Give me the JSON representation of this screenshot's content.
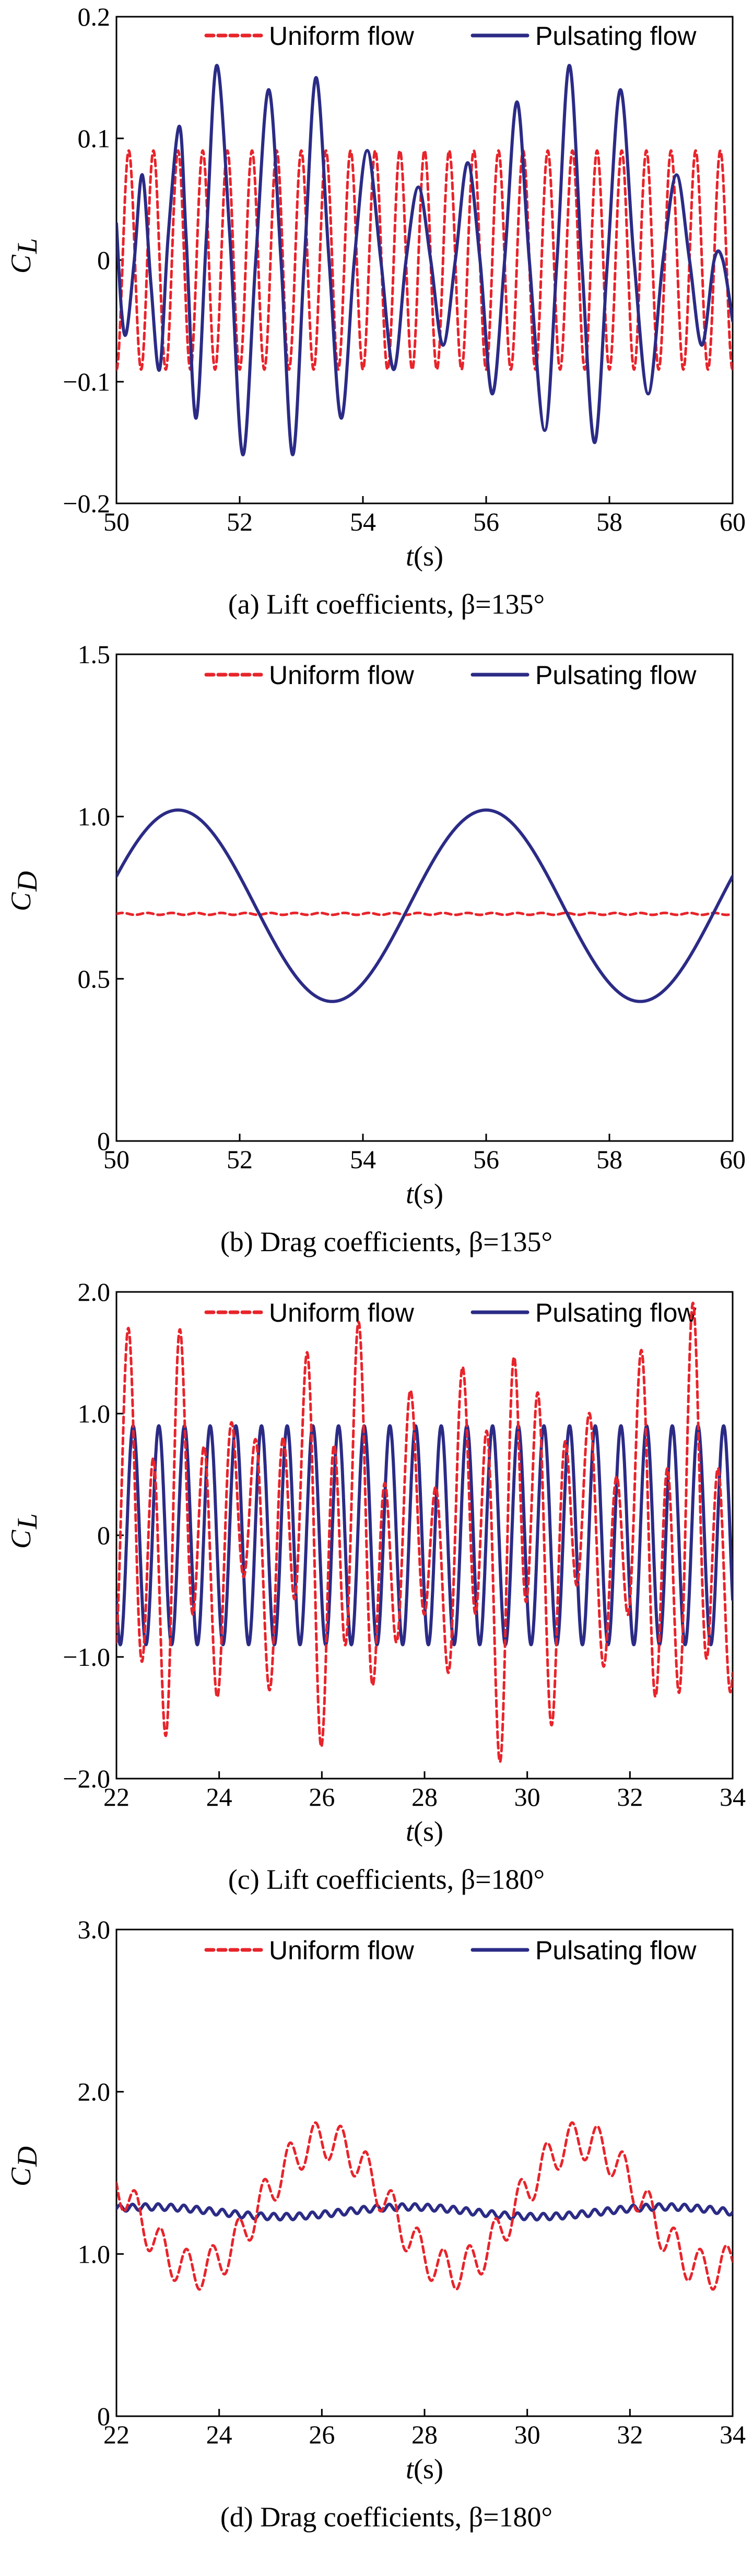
{
  "colors": {
    "uniform": "#e8242b",
    "pulsating": "#2b2b86",
    "axis": "#000000"
  },
  "chart_data": [
    {
      "type": "line",
      "panel": "a",
      "caption": "(a) Lift coefficients,  β=135°",
      "xlabel_italic": "t",
      "xlabel_unit": " (s)",
      "ylabel_main": "C",
      "ylabel_sub": "L",
      "xlim": [
        50,
        60
      ],
      "ylim": [
        -0.2,
        0.2
      ],
      "xticks": [
        50,
        52,
        54,
        56,
        58,
        60
      ],
      "yticks": [
        -0.2,
        -0.1,
        0,
        0.1,
        0.2
      ],
      "xtick_labels": [
        "50",
        "52",
        "54",
        "56",
        "58",
        "60"
      ],
      "ytick_labels": [
        "−0.2",
        "−0.1",
        "0",
        "0.1",
        "0.2"
      ],
      "legend": [
        "Uniform flow",
        "Pulsating flow"
      ],
      "series": [
        {
          "name": "Uniform flow",
          "style": "dashed",
          "model": "sine",
          "t0": 50,
          "t1": 60,
          "amplitude": 0.09,
          "offset": 0,
          "period": 0.4,
          "phase_t": 50.1
        },
        {
          "name": "Pulsating flow",
          "style": "solid",
          "model": "points",
          "x": [
            50,
            50.08,
            50.16,
            50.29,
            50.42,
            50.56,
            50.7,
            50.84,
            51.02,
            51.13,
            51.29,
            51.46,
            51.63,
            51.84,
            52.05,
            52.26,
            52.47,
            52.67,
            52.86,
            53.05,
            53.24,
            53.45,
            53.65,
            53.86,
            54.07,
            54.29,
            54.5,
            54.7,
            54.9,
            55.1,
            55.3,
            55.5,
            55.7,
            55.9,
            56.1,
            56.3,
            56.5,
            56.7,
            56.95,
            57.15,
            57.35,
            57.55,
            57.76,
            57.97,
            58.18,
            58.4,
            58.63,
            58.87,
            59.09,
            59.3,
            59.5,
            59.7,
            59.84,
            60
          ],
          "y": [
            0.03,
            -0.04,
            -0.06,
            0.0,
            0.07,
            -0.02,
            -0.09,
            0.02,
            0.11,
            0.02,
            -0.13,
            0.02,
            0.16,
            0.02,
            -0.16,
            0.0,
            0.14,
            0.0,
            -0.16,
            0.0,
            0.15,
            0.0,
            -0.13,
            0.0,
            0.09,
            0.0,
            -0.09,
            0.0,
            0.06,
            0.0,
            -0.07,
            0.0,
            0.08,
            0.0,
            -0.11,
            0.0,
            0.13,
            0.0,
            -0.14,
            0.0,
            0.16,
            0.0,
            -0.15,
            0.0,
            0.14,
            0.0,
            -0.11,
            0.0,
            0.07,
            0.0,
            -0.07,
            0.0,
            0.0,
            -0.05
          ]
        }
      ]
    },
    {
      "type": "line",
      "panel": "b",
      "caption": "(b) Drag coefficients,  β=135°",
      "xlabel_italic": "t",
      "xlabel_unit": " (s)",
      "ylabel_main": "C",
      "ylabel_sub": "D",
      "xlim": [
        50,
        60
      ],
      "ylim": [
        0,
        1.5
      ],
      "xticks": [
        50,
        52,
        54,
        56,
        58,
        60
      ],
      "yticks": [
        0,
        0.5,
        1.0,
        1.5
      ],
      "xtick_labels": [
        "50",
        "52",
        "54",
        "56",
        "58",
        "60"
      ],
      "ytick_labels": [
        "0",
        "0.5",
        "1.0",
        "1.5"
      ],
      "legend": [
        "Uniform flow",
        "Pulsating flow"
      ],
      "series": [
        {
          "name": "Uniform flow",
          "style": "dashed",
          "model": "sine",
          "t0": 50,
          "t1": 60,
          "amplitude": 0.003,
          "offset": 0.7,
          "period": 0.4,
          "phase_t": 50
        },
        {
          "name": "Pulsating flow",
          "style": "solid",
          "model": "sine",
          "t0": 50,
          "t1": 60,
          "amplitude": 0.295,
          "offset": 0.725,
          "period": 5,
          "phase_t": 49.75
        }
      ]
    },
    {
      "type": "line",
      "panel": "c",
      "caption": "(c) Lift coefficients,  β=180°",
      "xlabel_italic": "t",
      "xlabel_unit": " (s)",
      "ylabel_main": "C",
      "ylabel_sub": "L",
      "xlim": [
        22,
        34
      ],
      "ylim": [
        -2.0,
        2.0
      ],
      "xticks": [
        22,
        24,
        26,
        28,
        30,
        32,
        34
      ],
      "yticks": [
        -2.0,
        -1.0,
        0,
        1.0,
        2.0
      ],
      "xtick_labels": [
        "22",
        "24",
        "26",
        "28",
        "30",
        "32",
        "34"
      ],
      "ytick_labels": [
        "−2.0",
        "−1.0",
        "0",
        "1.0",
        "2.0"
      ],
      "legend": [
        "Uniform flow",
        "Pulsating flow"
      ],
      "series": [
        {
          "name": "Uniform flow",
          "style": "dashed",
          "model": "sine2",
          "t0": 22,
          "t1": 34,
          "amplitude": 1.0,
          "offset": 0,
          "period": 0.5,
          "phase_t": 22.1,
          "amplitude2": 0.55,
          "period2": 1.1,
          "envelope_period": 3.4,
          "envelope_depth": 0.25
        },
        {
          "name": "Pulsating flow",
          "style": "solid",
          "model": "sine",
          "t0": 22,
          "t1": 34,
          "amplitude": 0.9,
          "offset": 0,
          "period": 0.5,
          "phase_t": 22.2
        }
      ]
    },
    {
      "type": "line",
      "panel": "d",
      "caption": "(d) Drag coefficients,  β=180°",
      "xlabel_italic": "t",
      "xlabel_unit": " (s)",
      "ylabel_main": "C",
      "ylabel_sub": "D",
      "xlim": [
        22,
        34
      ],
      "ylim": [
        0,
        3.0
      ],
      "xticks": [
        22,
        24,
        26,
        28,
        30,
        32,
        34
      ],
      "yticks": [
        0,
        1.0,
        2.0,
        3.0
      ],
      "xtick_labels": [
        "22",
        "24",
        "26",
        "28",
        "30",
        "32",
        "34"
      ],
      "ytick_labels": [
        "0",
        "1.0",
        "2.0",
        "3.0"
      ],
      "legend": [
        "Uniform flow",
        "Pulsating flow"
      ],
      "series": [
        {
          "name": "Uniform flow",
          "style": "dashed",
          "model": "sine2",
          "t0": 22,
          "t1": 34,
          "amplitude": 0.4,
          "offset": 1.3,
          "period": 5,
          "phase_t": 24.8,
          "amplitude2": 0.12,
          "period2": 0.5,
          "envelope_period": 0,
          "envelope_depth": 0
        },
        {
          "name": "Pulsating flow",
          "style": "solid",
          "model": "sine2",
          "t0": 22,
          "t1": 34,
          "amplitude": 0.02,
          "offset": 1.26,
          "period": 0.25,
          "phase_t": 22,
          "amplitude2": 0.03,
          "period2": 5,
          "envelope_period": 0,
          "envelope_depth": 0
        }
      ]
    }
  ]
}
